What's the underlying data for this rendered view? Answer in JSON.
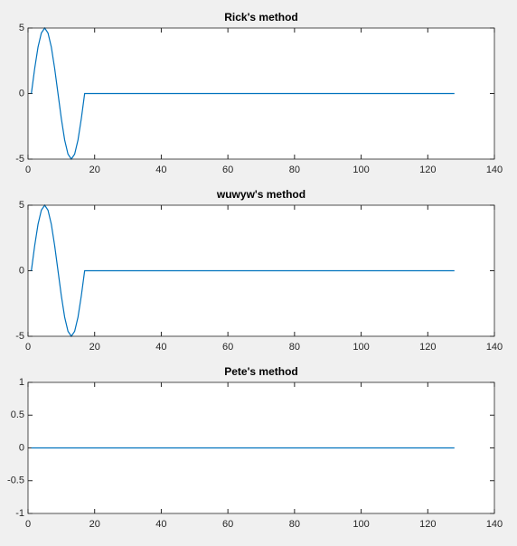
{
  "chart_data": [
    {
      "type": "line",
      "title": "Rick's method",
      "color": "#0072bd",
      "x": [
        1,
        2,
        3,
        4,
        5,
        6,
        7,
        8,
        9,
        10,
        11,
        12,
        13,
        14,
        15,
        16,
        17,
        128
      ],
      "values": [
        0,
        1.91,
        3.54,
        4.62,
        5,
        4.62,
        3.54,
        1.91,
        0,
        -1.91,
        -3.54,
        -4.62,
        -5,
        -4.62,
        -3.54,
        -1.91,
        0,
        0
      ],
      "xlim": [
        0,
        140
      ],
      "xticks": [
        0,
        20,
        40,
        60,
        80,
        100,
        120,
        140
      ],
      "ylim": [
        -5,
        5
      ],
      "yticks": [
        -5,
        0,
        5
      ],
      "grid": false
    },
    {
      "type": "line",
      "title": "wuwyw's method",
      "color": "#0072bd",
      "x": [
        1,
        2,
        3,
        4,
        5,
        6,
        7,
        8,
        9,
        10,
        11,
        12,
        13,
        14,
        15,
        16,
        17,
        128
      ],
      "values": [
        0,
        1.91,
        3.54,
        4.62,
        5,
        4.62,
        3.54,
        1.91,
        0,
        -1.91,
        -3.54,
        -4.62,
        -5,
        -4.62,
        -3.54,
        -1.91,
        0,
        0
      ],
      "xlim": [
        0,
        140
      ],
      "xticks": [
        0,
        20,
        40,
        60,
        80,
        100,
        120,
        140
      ],
      "ylim": [
        -5,
        5
      ],
      "yticks": [
        -5,
        0,
        5
      ],
      "grid": false
    },
    {
      "type": "line",
      "title": "Pete's method",
      "color": "#0072bd",
      "x": [
        1,
        128
      ],
      "values": [
        0,
        0
      ],
      "xlim": [
        0,
        140
      ],
      "xticks": [
        0,
        20,
        40,
        60,
        80,
        100,
        120,
        140
      ],
      "ylim": [
        -1,
        1
      ],
      "yticks": [
        -1,
        -0.5,
        0,
        0.5,
        1
      ],
      "grid": false
    }
  ]
}
